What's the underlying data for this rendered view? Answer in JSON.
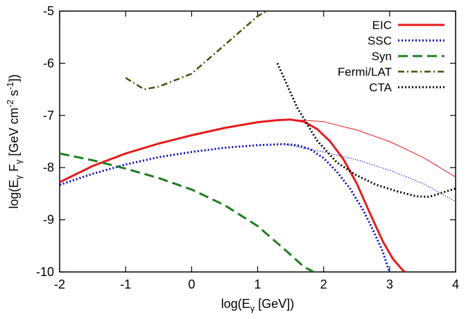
{
  "chart_data": {
    "type": "line",
    "xlabel": "log(E",
    "xlabel_sub": "γ",
    "xlabel_tail": " [GeV])",
    "ylabel_parts": [
      "log(E",
      "γ",
      " F",
      "γ",
      " [GeV cm",
      "-2",
      " s",
      "-1",
      "])"
    ],
    "xlim": [
      -2,
      4
    ],
    "ylim": [
      -10,
      -5
    ],
    "x_ticks": [
      -2,
      -1,
      0,
      1,
      2,
      3,
      4
    ],
    "y_ticks": [
      -10,
      -9,
      -8,
      -7,
      -6,
      -5
    ],
    "grid": false,
    "legend_position": "top-right",
    "series": [
      {
        "name": "EIC",
        "color": "#e41a1c",
        "dash": "solid",
        "width": 3,
        "x": [
          -2,
          -1.5,
          -1,
          -0.5,
          0,
          0.5,
          1,
          1.3,
          1.5,
          1.7,
          1.9,
          2.1,
          2.3,
          2.5,
          2.7,
          2.9,
          3.05,
          3.2,
          3.24
        ],
        "y": [
          -8.28,
          -7.97,
          -7.73,
          -7.54,
          -7.38,
          -7.24,
          -7.13,
          -7.09,
          -7.08,
          -7.12,
          -7.26,
          -7.5,
          -7.84,
          -8.3,
          -8.87,
          -9.42,
          -9.75,
          -9.97,
          -10.0
        ]
      },
      {
        "name": "SSC",
        "color": "#0000cc",
        "dash": "dotted",
        "width": 3,
        "x": [
          -2,
          -1.5,
          -1,
          -0.5,
          0,
          0.5,
          1,
          1.4,
          1.6,
          1.8,
          2,
          2.2,
          2.4,
          2.6,
          2.75,
          2.9,
          2.97,
          3.0
        ],
        "y": [
          -8.33,
          -8.12,
          -7.94,
          -7.8,
          -7.7,
          -7.62,
          -7.57,
          -7.55,
          -7.57,
          -7.65,
          -7.82,
          -8.08,
          -8.4,
          -8.82,
          -9.2,
          -9.62,
          -9.9,
          -10.0
        ]
      },
      {
        "name": "Syn",
        "color": "#1e7d1e",
        "dash": "dashed",
        "width": 3,
        "x": [
          -2,
          -1.5,
          -1,
          -0.5,
          0,
          0.5,
          1,
          1.3,
          1.5,
          1.7,
          1.85
        ],
        "y": [
          -7.73,
          -7.86,
          -8.02,
          -8.2,
          -8.42,
          -8.72,
          -9.12,
          -9.45,
          -9.67,
          -9.9,
          -10.0
        ]
      },
      {
        "name": "Fermi/LAT",
        "color": "#4a4a0a",
        "dash": "dashdot",
        "width": 2.5,
        "x": [
          -1.0,
          -0.72,
          -0.5,
          0,
          0.5,
          1.0,
          1.2
        ],
        "y": [
          -6.28,
          -6.5,
          -6.45,
          -6.2,
          -5.65,
          -5.1,
          -4.95
        ]
      },
      {
        "name": "CTA",
        "color": "#000000",
        "dash": "dotted",
        "width": 3,
        "x": [
          1.3,
          1.6,
          1.9,
          2.2,
          2.5,
          2.8,
          3.1,
          3.4,
          3.6,
          3.8,
          4.0
        ],
        "y": [
          -6.0,
          -6.85,
          -7.48,
          -7.9,
          -8.15,
          -8.33,
          -8.45,
          -8.55,
          -8.56,
          -8.48,
          -8.4
        ]
      },
      {
        "name": "EIC (thin)",
        "color": "#e41a1c",
        "dash": "solid",
        "width": 1,
        "legend": false,
        "x": [
          1.5,
          2.0,
          2.5,
          3.0,
          3.5,
          4.0
        ],
        "y": [
          -7.08,
          -7.12,
          -7.28,
          -7.5,
          -7.8,
          -8.18
        ]
      },
      {
        "name": "SSC (thin)",
        "color": "#0000cc",
        "dash": "dotted",
        "width": 1,
        "legend": false,
        "x": [
          1.4,
          2.0,
          2.5,
          3.0,
          3.5,
          4.0
        ],
        "y": [
          -7.55,
          -7.7,
          -7.85,
          -8.05,
          -8.3,
          -8.65
        ]
      }
    ]
  }
}
